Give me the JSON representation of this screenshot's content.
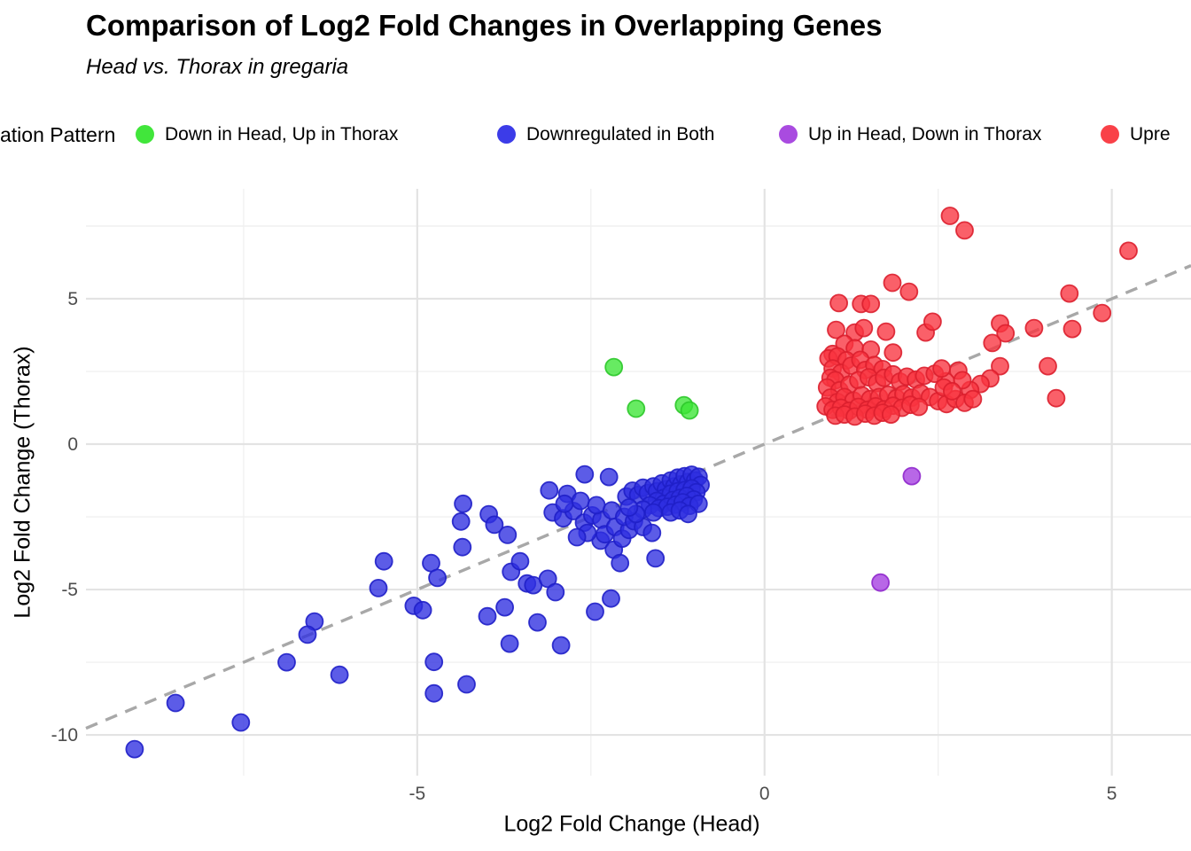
{
  "chart_data": {
    "type": "scatter",
    "title": "Comparison of Log2 Fold Changes in Overlapping Genes",
    "subtitle": "Head vs. Thorax in gregaria",
    "xlabel": "Log2 Fold Change (Head)",
    "ylabel": "Log2 Fold Change (Thorax)",
    "xlim": [
      -9.77,
      6.14
    ],
    "ylim": [
      -11.4,
      8.78
    ],
    "grid": "on",
    "x_ticks": {
      "major": [
        -5,
        0,
        5
      ],
      "labels": [
        "-5",
        "0",
        "5"
      ],
      "minor": [
        -7.5,
        -2.5,
        2.5
      ]
    },
    "y_ticks": {
      "major": [
        5,
        0,
        -5,
        -10
      ],
      "labels": [
        "5",
        "0",
        "-5",
        "-10"
      ],
      "minor": [
        7.5,
        2.5,
        -2.5,
        -7.5
      ]
    },
    "reference_line": {
      "type": "identity",
      "equation": "y = x",
      "style": "dashed",
      "color": "#a8a8a8"
    },
    "legend": {
      "title": "ation Pattern",
      "position": "top",
      "items": [
        {
          "label": "Down in Head, Up in Thorax",
          "color": "#41e63b"
        },
        {
          "label": "Downregulated in Both",
          "color": "#3c3ce8"
        },
        {
          "label": "Up in Head, Down in Thorax",
          "color": "#a94be0"
        },
        {
          "label": "Upre",
          "color": "#f94148"
        }
      ]
    },
    "series": [
      {
        "name": "Down in Head, Up in Thorax",
        "fill": "#3ce636",
        "stroke": "#2cc82a",
        "points": [
          [
            -2.17,
            2.65
          ],
          [
            -1.85,
            1.22
          ],
          [
            -1.16,
            1.34
          ],
          [
            -1.08,
            1.16
          ]
        ]
      },
      {
        "name": "Downregulated in Both",
        "fill": "#2e2ee0",
        "stroke": "#1f1fc8",
        "points": [
          [
            -9.07,
            -10.49
          ],
          [
            -8.48,
            -8.9
          ],
          [
            -7.54,
            -9.57
          ],
          [
            -6.88,
            -7.5
          ],
          [
            -6.12,
            -7.93
          ],
          [
            -6.48,
            -6.1
          ],
          [
            -6.58,
            -6.55
          ],
          [
            -4.76,
            -7.49
          ],
          [
            -4.76,
            -8.57
          ],
          [
            -4.29,
            -8.26
          ],
          [
            -5.48,
            -4.03
          ],
          [
            -5.56,
            -4.95
          ],
          [
            -4.8,
            -4.09
          ],
          [
            -4.71,
            -4.6
          ],
          [
            -5.05,
            -5.56
          ],
          [
            -4.92,
            -5.71
          ],
          [
            -3.99,
            -5.92
          ],
          [
            -3.74,
            -5.61
          ],
          [
            -3.67,
            -6.86
          ],
          [
            -3.27,
            -6.13
          ],
          [
            -2.93,
            -6.92
          ],
          [
            -3.65,
            -4.39
          ],
          [
            -3.52,
            -4.03
          ],
          [
            -3.42,
            -4.79
          ],
          [
            -3.33,
            -4.85
          ],
          [
            -3.12,
            -4.63
          ],
          [
            -3.01,
            -5.09
          ],
          [
            -2.44,
            -5.76
          ],
          [
            -2.21,
            -5.31
          ],
          [
            -2.36,
            -3.32
          ],
          [
            -2.17,
            -3.63
          ],
          [
            -2.08,
            -4.09
          ],
          [
            -1.57,
            -3.93
          ],
          [
            -4.35,
            -3.54
          ],
          [
            -4.34,
            -2.05
          ],
          [
            -4.37,
            -2.66
          ],
          [
            -3.97,
            -2.41
          ],
          [
            -3.89,
            -2.77
          ],
          [
            -3.7,
            -3.12
          ],
          [
            -3.1,
            -1.59
          ],
          [
            -2.84,
            -1.71
          ],
          [
            -2.59,
            -1.04
          ],
          [
            -2.24,
            -1.13
          ],
          [
            -3.05,
            -2.35
          ],
          [
            -2.9,
            -2.55
          ],
          [
            -2.75,
            -2.3
          ],
          [
            -2.6,
            -2.7
          ],
          [
            -2.48,
            -2.45
          ],
          [
            -2.35,
            -2.6
          ],
          [
            -2.55,
            -3.05
          ],
          [
            -2.7,
            -3.2
          ],
          [
            -2.3,
            -3.1
          ],
          [
            -2.15,
            -2.85
          ],
          [
            -2.05,
            -3.25
          ],
          [
            -1.95,
            -2.95
          ],
          [
            -2.88,
            -2.05
          ],
          [
            -2.65,
            -1.95
          ],
          [
            -2.42,
            -2.1
          ],
          [
            -2.2,
            -2.28
          ],
          [
            -2.02,
            -2.5
          ],
          [
            -1.88,
            -2.65
          ],
          [
            -1.75,
            -2.85
          ],
          [
            -1.62,
            -3.05
          ],
          [
            -1.99,
            -1.8
          ],
          [
            -1.9,
            -1.6
          ],
          [
            -1.82,
            -1.75
          ],
          [
            -1.75,
            -1.5
          ],
          [
            -1.68,
            -1.68
          ],
          [
            -1.6,
            -1.45
          ],
          [
            -1.55,
            -1.62
          ],
          [
            -1.48,
            -1.35
          ],
          [
            -1.42,
            -1.55
          ],
          [
            -1.35,
            -1.25
          ],
          [
            -1.3,
            -1.45
          ],
          [
            -1.25,
            -1.15
          ],
          [
            -1.2,
            -1.38
          ],
          [
            -1.15,
            -1.1
          ],
          [
            -1.1,
            -1.3
          ],
          [
            -1.05,
            -1.05
          ],
          [
            -1.0,
            -1.25
          ],
          [
            -0.95,
            -1.12
          ],
          [
            -0.92,
            -1.4
          ],
          [
            -1.45,
            -1.85
          ],
          [
            -1.35,
            -1.7
          ],
          [
            -1.25,
            -1.62
          ],
          [
            -1.15,
            -1.58
          ],
          [
            -1.05,
            -1.52
          ],
          [
            -0.98,
            -1.65
          ],
          [
            -1.55,
            -1.95
          ],
          [
            -1.45,
            -2.05
          ],
          [
            -1.32,
            -1.92
          ],
          [
            -1.22,
            -1.85
          ],
          [
            -1.12,
            -1.78
          ],
          [
            -1.02,
            -1.9
          ],
          [
            -1.65,
            -2.1
          ],
          [
            -1.52,
            -2.2
          ],
          [
            -1.4,
            -2.15
          ],
          [
            -1.28,
            -2.08
          ],
          [
            -1.18,
            -2.0
          ],
          [
            -1.08,
            -2.12
          ],
          [
            -0.95,
            -2.05
          ],
          [
            -1.35,
            -2.35
          ],
          [
            -1.22,
            -2.28
          ],
          [
            -1.1,
            -2.4
          ],
          [
            -1.75,
            -2.25
          ],
          [
            -1.85,
            -2.4
          ],
          [
            -1.6,
            -2.35
          ],
          [
            -1.95,
            -2.18
          ]
        ]
      },
      {
        "name": "Up in Head, Down in Thorax",
        "fill": "#a43ce0",
        "stroke": "#8f28cc",
        "points": [
          [
            2.12,
            -1.1
          ],
          [
            1.67,
            -4.76
          ]
        ]
      },
      {
        "name": "Upre",
        "fill": "#f9333f",
        "stroke": "#dc1f2e",
        "points": [
          [
            2.67,
            7.85
          ],
          [
            2.88,
            7.35
          ],
          [
            5.24,
            6.65
          ],
          [
            1.84,
            5.55
          ],
          [
            2.08,
            5.24
          ],
          [
            4.39,
            5.18
          ],
          [
            1.07,
            4.85
          ],
          [
            1.39,
            4.82
          ],
          [
            1.53,
            4.82
          ],
          [
            4.86,
            4.51
          ],
          [
            1.03,
            3.93
          ],
          [
            1.3,
            3.84
          ],
          [
            1.43,
            3.99
          ],
          [
            1.75,
            3.87
          ],
          [
            2.32,
            3.84
          ],
          [
            2.42,
            4.21
          ],
          [
            3.39,
            4.15
          ],
          [
            3.47,
            3.81
          ],
          [
            3.88,
            3.99
          ],
          [
            4.43,
            3.96
          ],
          [
            4.08,
            2.68
          ],
          [
            4.2,
            1.58
          ],
          [
            3.39,
            2.68
          ],
          [
            3.28,
            3.48
          ],
          [
            3.25,
            2.26
          ],
          [
            3.11,
            2.07
          ],
          [
            2.96,
            1.86
          ],
          [
            2.79,
            2.53
          ],
          [
            2.61,
            2.16
          ],
          [
            0.98,
            3.1
          ],
          [
            1.15,
            3.45
          ],
          [
            1.3,
            3.3
          ],
          [
            1.53,
            3.25
          ],
          [
            1.85,
            3.15
          ],
          [
            0.92,
            2.95
          ],
          [
            1.05,
            3.02
          ],
          [
            1.18,
            2.88
          ],
          [
            0.98,
            2.6
          ],
          [
            1.1,
            2.45
          ],
          [
            1.25,
            2.7
          ],
          [
            1.38,
            2.9
          ],
          [
            1.45,
            2.55
          ],
          [
            1.58,
            2.72
          ],
          [
            1.7,
            2.58
          ],
          [
            0.95,
            2.28
          ],
          [
            1.02,
            2.2
          ],
          [
            0.9,
            1.95
          ],
          [
            1.08,
            1.85
          ],
          [
            1.22,
            2.05
          ],
          [
            1.35,
            2.2
          ],
          [
            1.5,
            2.3
          ],
          [
            1.62,
            2.1
          ],
          [
            1.72,
            2.28
          ],
          [
            1.85,
            2.4
          ],
          [
            1.95,
            2.15
          ],
          [
            2.05,
            2.32
          ],
          [
            2.18,
            2.22
          ],
          [
            2.3,
            2.35
          ],
          [
            2.45,
            2.42
          ],
          [
            2.55,
            2.6
          ],
          [
            2.85,
            2.2
          ],
          [
            0.95,
            1.6
          ],
          [
            1.05,
            1.45
          ],
          [
            1.15,
            1.62
          ],
          [
            1.28,
            1.5
          ],
          [
            1.4,
            1.68
          ],
          [
            1.52,
            1.55
          ],
          [
            1.65,
            1.62
          ],
          [
            1.78,
            1.7
          ],
          [
            1.9,
            1.58
          ],
          [
            2.0,
            1.72
          ],
          [
            2.12,
            1.6
          ],
          [
            2.25,
            1.75
          ],
          [
            2.38,
            1.62
          ],
          [
            2.5,
            1.48
          ],
          [
            2.62,
            1.38
          ],
          [
            2.75,
            1.55
          ],
          [
            2.88,
            1.42
          ],
          [
            3.0,
            1.55
          ],
          [
            0.88,
            1.3
          ],
          [
            0.98,
            1.18
          ],
          [
            1.1,
            1.25
          ],
          [
            1.22,
            1.15
          ],
          [
            1.35,
            1.28
          ],
          [
            1.48,
            1.18
          ],
          [
            1.6,
            1.3
          ],
          [
            1.72,
            1.2
          ],
          [
            1.85,
            1.32
          ],
          [
            1.98,
            1.25
          ],
          [
            2.1,
            1.35
          ],
          [
            2.22,
            1.28
          ],
          [
            1.02,
            0.98
          ],
          [
            1.15,
            1.02
          ],
          [
            1.3,
            0.95
          ],
          [
            1.45,
            1.05
          ],
          [
            1.58,
            0.98
          ],
          [
            1.7,
            1.08
          ],
          [
            1.82,
            1.02
          ],
          [
            2.58,
            1.95
          ],
          [
            2.7,
            1.82
          ]
        ]
      }
    ]
  }
}
